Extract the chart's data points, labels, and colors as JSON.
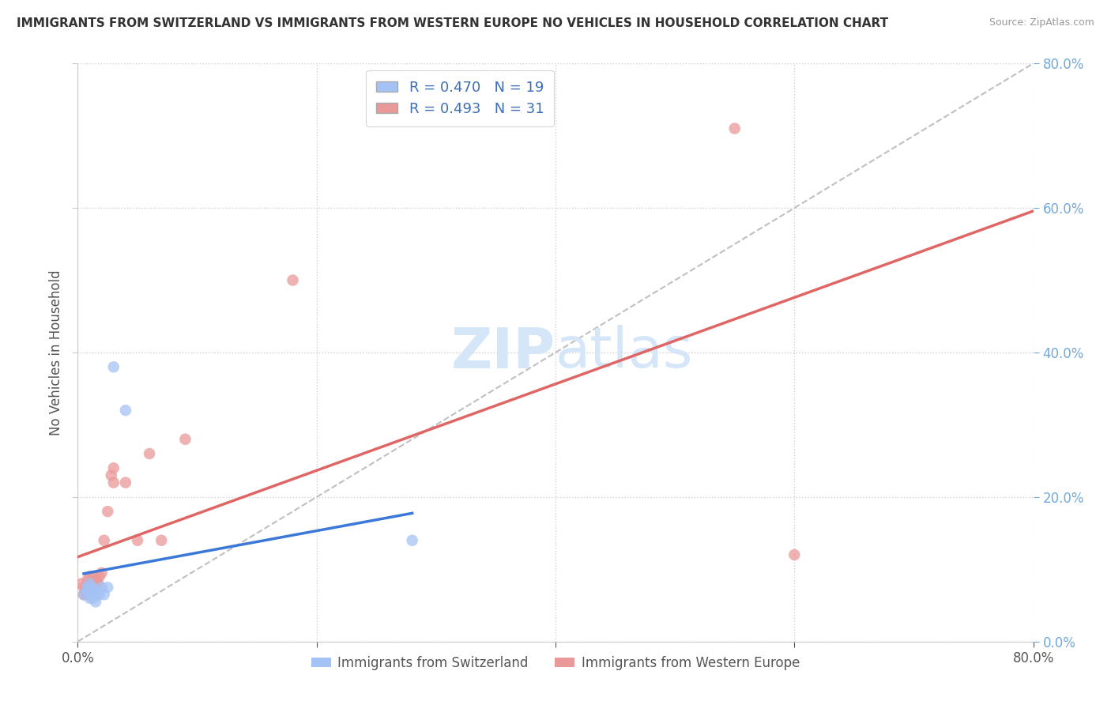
{
  "title": "IMMIGRANTS FROM SWITZERLAND VS IMMIGRANTS FROM WESTERN EUROPE NO VEHICLES IN HOUSEHOLD CORRELATION CHART",
  "source": "Source: ZipAtlas.com",
  "ylabel": "No Vehicles in Household",
  "R_switzerland": 0.47,
  "N_switzerland": 19,
  "R_western_europe": 0.493,
  "N_western_europe": 31,
  "switzerland_color": "#a4c2f4",
  "western_europe_color": "#ea9999",
  "switzerland_line_color": "#3c78d8",
  "western_europe_line_color": "#e06666",
  "ref_line_color": "#b0b0b0",
  "watermark_color": "#d0e4f7",
  "xlim": [
    0.0,
    0.8
  ],
  "ylim": [
    0.0,
    0.8
  ],
  "switzerland_x": [
    0.005,
    0.008,
    0.008,
    0.01,
    0.01,
    0.012,
    0.012,
    0.013,
    0.013,
    0.015,
    0.015,
    0.016,
    0.018,
    0.02,
    0.022,
    0.025,
    0.03,
    0.04,
    0.28
  ],
  "switzerland_y": [
    0.065,
    0.07,
    0.075,
    0.06,
    0.08,
    0.065,
    0.075,
    0.06,
    0.07,
    0.055,
    0.065,
    0.07,
    0.065,
    0.075,
    0.065,
    0.075,
    0.38,
    0.32,
    0.14
  ],
  "western_europe_x": [
    0.003,
    0.005,
    0.005,
    0.007,
    0.008,
    0.008,
    0.008,
    0.01,
    0.01,
    0.01,
    0.012,
    0.012,
    0.013,
    0.015,
    0.016,
    0.017,
    0.018,
    0.02,
    0.022,
    0.025,
    0.028,
    0.03,
    0.03,
    0.04,
    0.05,
    0.06,
    0.07,
    0.09,
    0.18,
    0.55,
    0.6
  ],
  "western_europe_y": [
    0.08,
    0.065,
    0.075,
    0.07,
    0.065,
    0.075,
    0.085,
    0.07,
    0.08,
    0.09,
    0.075,
    0.08,
    0.09,
    0.08,
    0.085,
    0.08,
    0.09,
    0.095,
    0.14,
    0.18,
    0.23,
    0.22,
    0.24,
    0.22,
    0.14,
    0.26,
    0.14,
    0.28,
    0.5,
    0.71,
    0.12
  ],
  "background_color": "#ffffff",
  "grid_color": "#d0d0d0",
  "right_tick_color": "#6fa8dc"
}
